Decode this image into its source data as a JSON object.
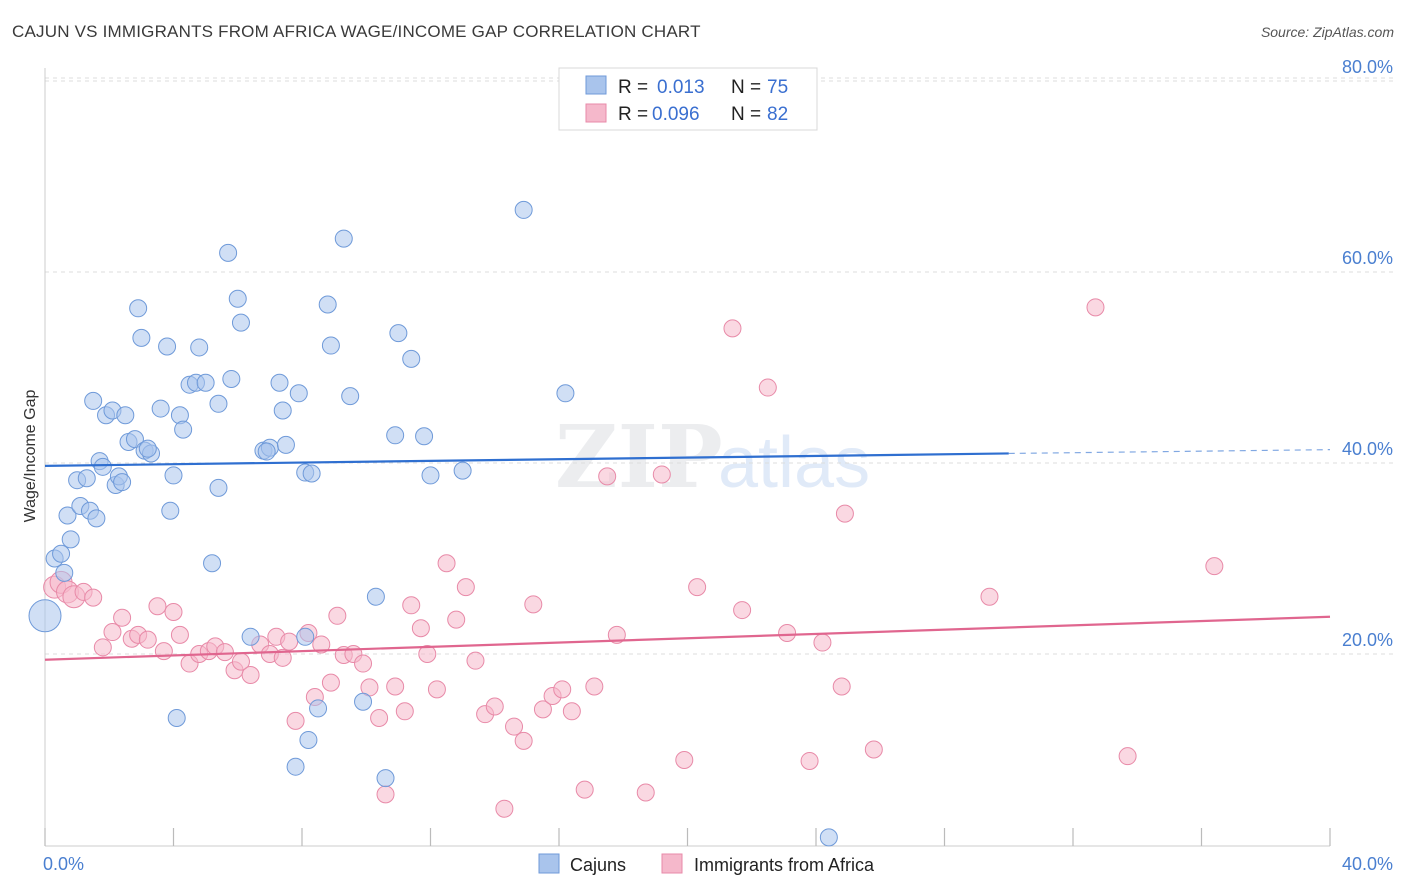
{
  "header": {
    "title": "CAJUN VS IMMIGRANTS FROM AFRICA WAGE/INCOME GAP CORRELATION CHART",
    "source": "Source: ZipAtlas.com"
  },
  "watermark": {
    "zip": "ZIP",
    "atlas": "atlas"
  },
  "colors": {
    "cajuns_fill": "#a9c4ec",
    "cajuns_stroke": "#6f9ad9",
    "cajuns_line": "#2f6fd0",
    "africa_fill": "#f5b8cb",
    "africa_stroke": "#e88aa8",
    "africa_line": "#e0668f",
    "tick_text": "#4a7fd0",
    "grid": "#dddddd"
  },
  "legend": {
    "rows": [
      {
        "r_label": "R =",
        "r_value": "0.013",
        "n_label": "N =",
        "n_value": "75"
      },
      {
        "r_label": "R =",
        "r_value": "0.096",
        "n_label": "N =",
        "n_value": "82"
      }
    ]
  },
  "bottom_legend": {
    "items": [
      "Cajuns",
      "Immigrants from Africa"
    ]
  },
  "chart_data": {
    "type": "scatter",
    "title": "CAJUN VS IMMIGRANTS FROM AFRICA WAGE/INCOME GAP CORRELATION CHART",
    "xlabel": "",
    "ylabel": "Wage/Income Gap",
    "xlim": [
      0,
      40
    ],
    "ylim": [
      0,
      85
    ],
    "x_tick_labels": [
      "0.0%",
      "40.0%"
    ],
    "y_ticks": [
      20,
      40,
      60,
      80
    ],
    "y_tick_labels": [
      "20.0%",
      "40.0%",
      "60.0%",
      "80.0%"
    ],
    "grid": true,
    "legend_position": "top-center",
    "series": [
      {
        "name": "Cajuns",
        "r": 0.013,
        "n": 75,
        "trend": {
          "x0": 0,
          "y0": 39.7,
          "x1": 30,
          "y1": 41.0,
          "dashed_to_x": 40,
          "dashed_y": 41.4
        },
        "points": [
          [
            0.0,
            24.0
          ],
          [
            0.3,
            30.0
          ],
          [
            0.5,
            30.5
          ],
          [
            0.6,
            28.5
          ],
          [
            0.7,
            34.5
          ],
          [
            0.8,
            32.0
          ],
          [
            1.0,
            38.2
          ],
          [
            1.1,
            35.5
          ],
          [
            1.3,
            38.4
          ],
          [
            1.4,
            35.0
          ],
          [
            1.5,
            46.5
          ],
          [
            1.6,
            34.2
          ],
          [
            1.7,
            40.2
          ],
          [
            1.8,
            39.6
          ],
          [
            1.9,
            45.0
          ],
          [
            2.1,
            45.5
          ],
          [
            2.2,
            37.7
          ],
          [
            2.3,
            38.6
          ],
          [
            2.5,
            45.0
          ],
          [
            2.6,
            42.2
          ],
          [
            2.8,
            42.5
          ],
          [
            2.9,
            56.2
          ],
          [
            3.0,
            53.1
          ],
          [
            3.1,
            41.3
          ],
          [
            3.3,
            41.0
          ],
          [
            3.6,
            45.7
          ],
          [
            3.8,
            52.2
          ],
          [
            3.9,
            35.0
          ],
          [
            4.0,
            38.7
          ],
          [
            4.2,
            45.0
          ],
          [
            4.3,
            43.5
          ],
          [
            4.5,
            48.2
          ],
          [
            4.7,
            48.4
          ],
          [
            4.8,
            52.1
          ],
          [
            5.0,
            48.4
          ],
          [
            5.2,
            29.5
          ],
          [
            5.4,
            46.2
          ],
          [
            5.4,
            37.4
          ],
          [
            5.7,
            62.0
          ],
          [
            5.8,
            48.8
          ],
          [
            6.0,
            57.2
          ],
          [
            6.1,
            54.7
          ],
          [
            6.4,
            21.8
          ],
          [
            6.8,
            41.3
          ],
          [
            7.0,
            41.6
          ],
          [
            7.3,
            48.4
          ],
          [
            7.4,
            45.5
          ],
          [
            7.5,
            41.9
          ],
          [
            7.9,
            47.3
          ],
          [
            8.1,
            39.0
          ],
          [
            8.1,
            21.8
          ],
          [
            8.3,
            38.9
          ],
          [
            8.5,
            14.3
          ],
          [
            8.8,
            56.6
          ],
          [
            8.9,
            52.3
          ],
          [
            9.3,
            63.5
          ],
          [
            9.5,
            47.0
          ],
          [
            9.9,
            15.0
          ],
          [
            10.3,
            26.0
          ],
          [
            10.6,
            7.0
          ],
          [
            10.9,
            42.9
          ],
          [
            11.0,
            53.6
          ],
          [
            11.4,
            50.9
          ],
          [
            11.8,
            42.8
          ],
          [
            12.0,
            38.7
          ],
          [
            13.0,
            39.2
          ],
          [
            14.9,
            66.5
          ],
          [
            16.2,
            47.3
          ],
          [
            4.1,
            13.3
          ],
          [
            7.8,
            8.2
          ],
          [
            8.2,
            11.0
          ],
          [
            24.4,
            0.8
          ],
          [
            3.2,
            41.5
          ],
          [
            6.9,
            41.2
          ],
          [
            2.4,
            38.0
          ]
        ]
      },
      {
        "name": "Immigrants from Africa",
        "r": 0.096,
        "n": 82,
        "trend": {
          "x0": 0,
          "y0": 19.4,
          "x1": 40,
          "y1": 23.9
        },
        "points": [
          [
            0.3,
            27.0
          ],
          [
            0.5,
            27.5
          ],
          [
            0.7,
            26.5
          ],
          [
            0.9,
            26.0
          ],
          [
            1.2,
            26.5
          ],
          [
            1.5,
            25.9
          ],
          [
            1.8,
            20.7
          ],
          [
            2.1,
            22.3
          ],
          [
            2.4,
            23.8
          ],
          [
            2.7,
            21.6
          ],
          [
            2.9,
            22.0
          ],
          [
            3.2,
            21.5
          ],
          [
            3.5,
            25.0
          ],
          [
            3.7,
            20.3
          ],
          [
            4.0,
            24.4
          ],
          [
            4.2,
            22.0
          ],
          [
            4.5,
            19.0
          ],
          [
            4.8,
            20.0
          ],
          [
            5.1,
            20.3
          ],
          [
            5.3,
            20.8
          ],
          [
            5.6,
            20.2
          ],
          [
            5.9,
            18.3
          ],
          [
            6.1,
            19.2
          ],
          [
            6.4,
            17.8
          ],
          [
            6.7,
            21.0
          ],
          [
            7.0,
            20.0
          ],
          [
            7.2,
            21.8
          ],
          [
            7.4,
            19.6
          ],
          [
            7.6,
            21.3
          ],
          [
            7.8,
            13.0
          ],
          [
            8.2,
            22.2
          ],
          [
            8.4,
            15.5
          ],
          [
            8.6,
            21.0
          ],
          [
            8.9,
            17.0
          ],
          [
            9.1,
            24.0
          ],
          [
            9.3,
            19.9
          ],
          [
            9.6,
            20.0
          ],
          [
            9.9,
            19.0
          ],
          [
            10.1,
            16.5
          ],
          [
            10.4,
            13.3
          ],
          [
            10.6,
            5.3
          ],
          [
            10.9,
            16.6
          ],
          [
            11.2,
            14.0
          ],
          [
            11.4,
            25.1
          ],
          [
            11.7,
            22.7
          ],
          [
            11.9,
            20.0
          ],
          [
            12.2,
            16.3
          ],
          [
            12.5,
            29.5
          ],
          [
            12.8,
            23.6
          ],
          [
            13.1,
            27.0
          ],
          [
            13.4,
            19.3
          ],
          [
            13.7,
            13.7
          ],
          [
            14.0,
            14.5
          ],
          [
            14.3,
            3.8
          ],
          [
            14.6,
            12.4
          ],
          [
            14.9,
            10.9
          ],
          [
            15.2,
            25.2
          ],
          [
            15.5,
            14.2
          ],
          [
            15.8,
            15.6
          ],
          [
            16.1,
            16.3
          ],
          [
            16.4,
            14.0
          ],
          [
            16.8,
            5.8
          ],
          [
            17.1,
            16.6
          ],
          [
            17.5,
            38.6
          ],
          [
            17.8,
            22.0
          ],
          [
            18.7,
            5.5
          ],
          [
            19.2,
            38.8
          ],
          [
            19.9,
            8.9
          ],
          [
            20.3,
            27.0
          ],
          [
            21.4,
            54.1
          ],
          [
            21.7,
            24.6
          ],
          [
            22.5,
            47.9
          ],
          [
            23.1,
            22.2
          ],
          [
            23.8,
            8.8
          ],
          [
            24.2,
            21.2
          ],
          [
            24.8,
            16.6
          ],
          [
            24.9,
            34.7
          ],
          [
            25.8,
            10.0
          ],
          [
            29.4,
            26.0
          ],
          [
            32.7,
            56.3
          ],
          [
            33.7,
            9.3
          ],
          [
            36.4,
            29.2
          ]
        ]
      }
    ]
  }
}
